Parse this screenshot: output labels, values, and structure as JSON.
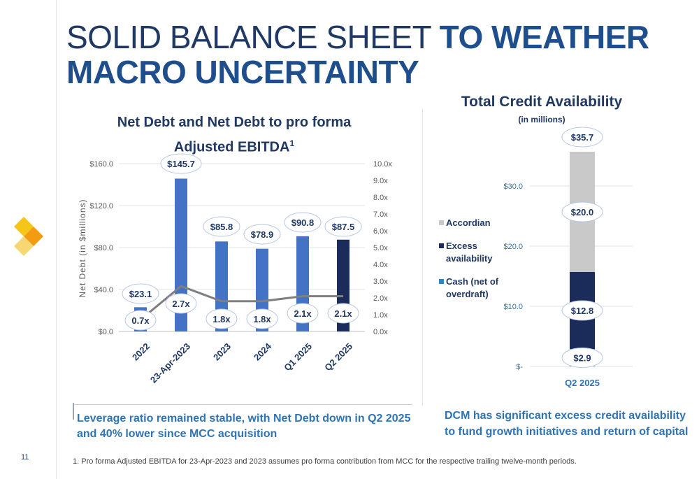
{
  "page": {
    "headline_thin": "SOLID BALANCE SHEET",
    "headline_bold": "TO WEATHER MACRO UNCERTAINTY",
    "page_number": "11",
    "footnote": "1. Pro forma Adjusted EBITDA for 23-Apr-2023 and 2023 assumes pro forma contribution from MCC for the respective trailing twelve-month periods.",
    "left_caption": "Leverage ratio remained stable, with Net Debt down in Q2 2025 and 40% lower since MCC acquisition",
    "right_caption": "DCM has significant excess credit availability to fund growth initiatives and return of capital",
    "colors": {
      "navy": "#1f3864",
      "blue_text": "#2e74b5",
      "bar_blue": "#4472c4",
      "bar_navy": "#1b2c5a",
      "line_gray": "#7f7f7f",
      "accordian_gray": "#c9c9c9",
      "cash_blue": "#2e86c1",
      "logo_yellow": "#f5c518",
      "logo_orange": "#f39c12"
    }
  },
  "chart_data": [
    {
      "type": "bar",
      "title": "Net Debt and Net Debt to pro forma Adjusted EBITDA",
      "title_superscript": "1",
      "ylabel": "Net Debt (in $millions)",
      "ylim": [
        0,
        160
      ],
      "yticks": [
        "$0.0",
        "$40.0",
        "$80.0",
        "$120.0",
        "$160.0"
      ],
      "y2lim": [
        0,
        10
      ],
      "y2ticks": [
        "0.0x",
        "1.0x",
        "2.0x",
        "3.0x",
        "4.0x",
        "5.0x",
        "6.0x",
        "7.0x",
        "8.0x",
        "9.0x",
        "10.0x"
      ],
      "categories": [
        "2022",
        "23-Apr-2023",
        "2023",
        "2024",
        "Q1 2025",
        "Q2 2025"
      ],
      "grid": true,
      "series": [
        {
          "kind": "bar",
          "axis": "left",
          "values": [
            23.1,
            145.7,
            85.8,
            78.9,
            90.8,
            87.5
          ],
          "labels": [
            "$23.1",
            "$145.7",
            "$85.8",
            "$78.9",
            "$90.8",
            "$87.5"
          ],
          "colors": [
            "#4472c4",
            "#4472c4",
            "#4472c4",
            "#4472c4",
            "#4472c4",
            "#1b2c5a"
          ]
        },
        {
          "kind": "line",
          "axis": "right",
          "values": [
            0.7,
            2.7,
            1.8,
            1.8,
            2.1,
            2.1
          ],
          "labels": [
            "0.7x",
            "2.7x",
            "1.8x",
            "1.8x",
            "2.1x",
            "2.1x"
          ]
        }
      ]
    },
    {
      "type": "bar",
      "stacked": true,
      "title": "Total Credit Availability",
      "subtitle": "(in millions)",
      "categories": [
        "Q2 2025"
      ],
      "ylim": [
        0,
        35.7
      ],
      "yticks": [
        "$-",
        "$10.0",
        "$20.0",
        "$30.0"
      ],
      "total_label": "$35.7",
      "legend_position": "left",
      "series": [
        {
          "name": "Cash (net of overdraft)",
          "values": [
            2.9
          ],
          "label": "$2.9",
          "color": "#2e86c1"
        },
        {
          "name": "Excess availability",
          "values": [
            12.8
          ],
          "label": "$12.8",
          "color": "#1b2c5a"
        },
        {
          "name": "Accordian",
          "values": [
            20.0
          ],
          "label": "$20.0",
          "color": "#c9c9c9"
        }
      ]
    }
  ]
}
